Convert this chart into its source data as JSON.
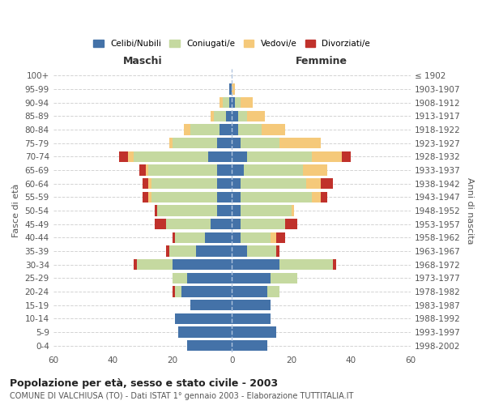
{
  "age_groups": [
    "0-4",
    "5-9",
    "10-14",
    "15-19",
    "20-24",
    "25-29",
    "30-34",
    "35-39",
    "40-44",
    "45-49",
    "50-54",
    "55-59",
    "60-64",
    "65-69",
    "70-74",
    "75-79",
    "80-84",
    "85-89",
    "90-94",
    "95-99",
    "100+"
  ],
  "birth_years": [
    "1998-2002",
    "1993-1997",
    "1988-1992",
    "1983-1987",
    "1978-1982",
    "1973-1977",
    "1968-1972",
    "1963-1967",
    "1958-1962",
    "1953-1957",
    "1948-1952",
    "1943-1947",
    "1938-1942",
    "1933-1937",
    "1928-1932",
    "1923-1927",
    "1918-1922",
    "1913-1917",
    "1908-1912",
    "1903-1907",
    "≤ 1902"
  ],
  "male": {
    "celibi": [
      15,
      18,
      19,
      14,
      17,
      15,
      20,
      12,
      9,
      7,
      5,
      5,
      5,
      5,
      8,
      5,
      4,
      2,
      1,
      1,
      0
    ],
    "coniugati": [
      0,
      0,
      0,
      0,
      2,
      5,
      12,
      9,
      10,
      15,
      20,
      22,
      22,
      23,
      25,
      15,
      10,
      4,
      2,
      0,
      0
    ],
    "vedovi": [
      0,
      0,
      0,
      0,
      0,
      0,
      0,
      0,
      0,
      0,
      0,
      1,
      1,
      1,
      2,
      1,
      2,
      1,
      1,
      0,
      0
    ],
    "divorziati": [
      0,
      0,
      0,
      0,
      1,
      0,
      1,
      1,
      1,
      4,
      1,
      2,
      2,
      2,
      3,
      0,
      0,
      0,
      0,
      0,
      0
    ]
  },
  "female": {
    "nubili": [
      12,
      15,
      13,
      13,
      12,
      13,
      16,
      5,
      3,
      3,
      3,
      3,
      3,
      4,
      5,
      3,
      2,
      2,
      1,
      0,
      0
    ],
    "coniugate": [
      0,
      0,
      0,
      0,
      4,
      9,
      18,
      10,
      10,
      15,
      17,
      24,
      22,
      20,
      22,
      13,
      8,
      3,
      2,
      0,
      0
    ],
    "vedove": [
      0,
      0,
      0,
      0,
      0,
      0,
      0,
      0,
      2,
      0,
      1,
      3,
      5,
      8,
      10,
      14,
      8,
      6,
      4,
      1,
      0
    ],
    "divorziate": [
      0,
      0,
      0,
      0,
      0,
      0,
      1,
      1,
      3,
      4,
      0,
      2,
      4,
      0,
      3,
      0,
      0,
      0,
      0,
      0,
      0
    ]
  },
  "colors": {
    "celibi": "#4472a8",
    "coniugati": "#c5d9a0",
    "vedovi": "#f5c97a",
    "divorziati": "#c0312b"
  },
  "xlim": 60,
  "title": "Popolazione per età, sesso e stato civile - 2003",
  "subtitle": "COMUNE DI VALCHIUSA (TO) - Dati ISTAT 1° gennaio 2003 - Elaborazione TUTTITALIA.IT",
  "ylabel_left": "Fasce di età",
  "ylabel_right": "Anni di nascita",
  "xlabel_left": "Maschi",
  "xlabel_right": "Femmine",
  "background_color": "#ffffff",
  "legend_labels": [
    "Celibi/Nubili",
    "Coniugati/e",
    "Vedovi/e",
    "Divorziati/e"
  ]
}
